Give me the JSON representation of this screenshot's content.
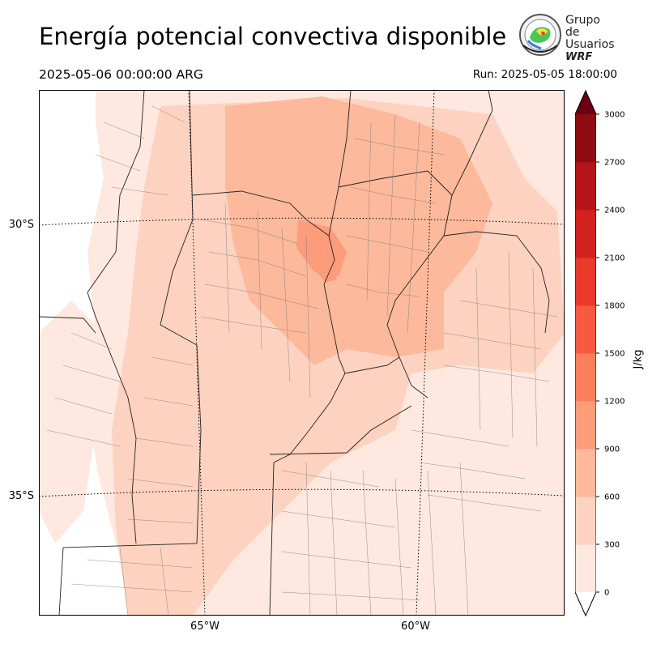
{
  "header": {
    "title": "Energía potencial convectiva disponible",
    "valid_time": "2025-05-06 00:00:00 ARG",
    "run_time": "Run: 2025-05-05 18:00:00"
  },
  "logo": {
    "line1": "Grupo de",
    "line2": "Usuarios",
    "line3": "WRF"
  },
  "map": {
    "latitude_labels": [
      "30°S",
      "35°S"
    ],
    "longitude_labels": [
      "65°W",
      "60°W"
    ]
  },
  "colorbar": {
    "label": "J/kg",
    "ticks": [
      "0",
      "300",
      "600",
      "900",
      "1200",
      "1500",
      "1800",
      "2100",
      "2400",
      "2700",
      "3000"
    ],
    "colors": [
      "#fee8df",
      "#fdd2c0",
      "#fcb99c",
      "#fc9c7b",
      "#fb7f5c",
      "#f75a40",
      "#eb3a2c",
      "#d2211e",
      "#b51419",
      "#8f0b12",
      "#6a0010"
    ],
    "extend": "both"
  }
}
